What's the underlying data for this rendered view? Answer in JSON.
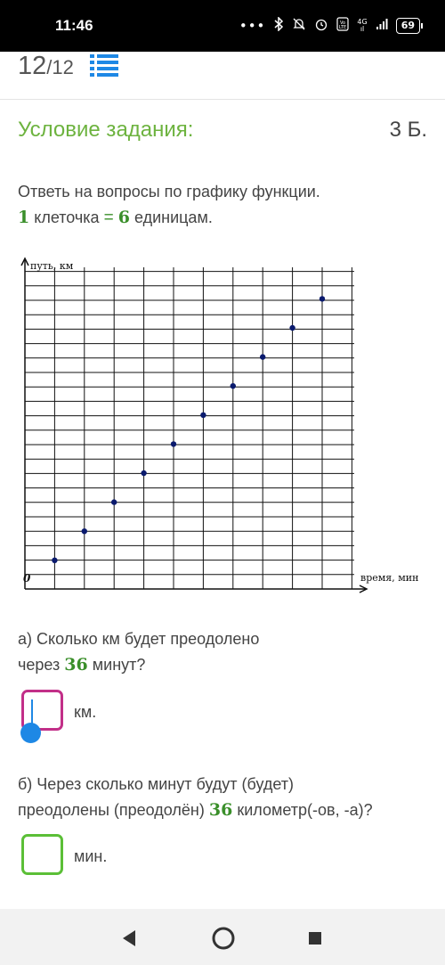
{
  "status_bar": {
    "time": "11:46",
    "dots": "•••",
    "network_top": "4G",
    "network_bottom": "ıl",
    "battery": "69"
  },
  "header": {
    "current_page": "12",
    "total_pages": "/12",
    "list_icon": "list-icon"
  },
  "task": {
    "title": "Условие задания:",
    "points": "3 Б.",
    "intro": "Ответь на вопросы по графику функции.",
    "scale_one": "1",
    "scale_cell": "клеточка",
    "scale_eq": "=",
    "scale_six": "6",
    "scale_units": "единицам."
  },
  "chart_data": {
    "type": "scatter",
    "ylabel": "путь, км",
    "xlabel": "время, мин",
    "origin_label": "0",
    "x_unit_per_cell": 6,
    "y_unit_per_cell": 6,
    "x_grid_cells": 10,
    "y_grid_cells": 10,
    "grid": true,
    "points": [
      {
        "x": 6,
        "y": 6
      },
      {
        "x": 12,
        "y": 12
      },
      {
        "x": 18,
        "y": 18
      },
      {
        "x": 24,
        "y": 24
      },
      {
        "x": 30,
        "y": 30
      },
      {
        "x": 36,
        "y": 36
      },
      {
        "x": 42,
        "y": 42
      },
      {
        "x": 48,
        "y": 48
      },
      {
        "x": 54,
        "y": 54
      },
      {
        "x": 60,
        "y": 60
      }
    ],
    "point_color": "#0a1a6e"
  },
  "question_a": {
    "line1": "а) Сколько км будет преодолено",
    "line2_pre": "через",
    "line2_num": "36",
    "line2_post": "минут?",
    "input_value": "",
    "unit": "км."
  },
  "question_b": {
    "line1": "б) Через сколько минут будут (будет)",
    "line2_pre": "преодолены (преодолён)",
    "line2_num": "36",
    "line2_post": "километр(-ов, -а)?",
    "input_value": "",
    "unit": "мин."
  },
  "colors": {
    "accent_green": "#6db33f",
    "active_input": "#c22f88",
    "inactive_input": "#5bbf37",
    "caret": "#1e88e5",
    "list_icon": "#1e88e5"
  },
  "nav": {
    "back": "back-icon",
    "home": "home-icon",
    "recent": "recent-apps-icon"
  }
}
